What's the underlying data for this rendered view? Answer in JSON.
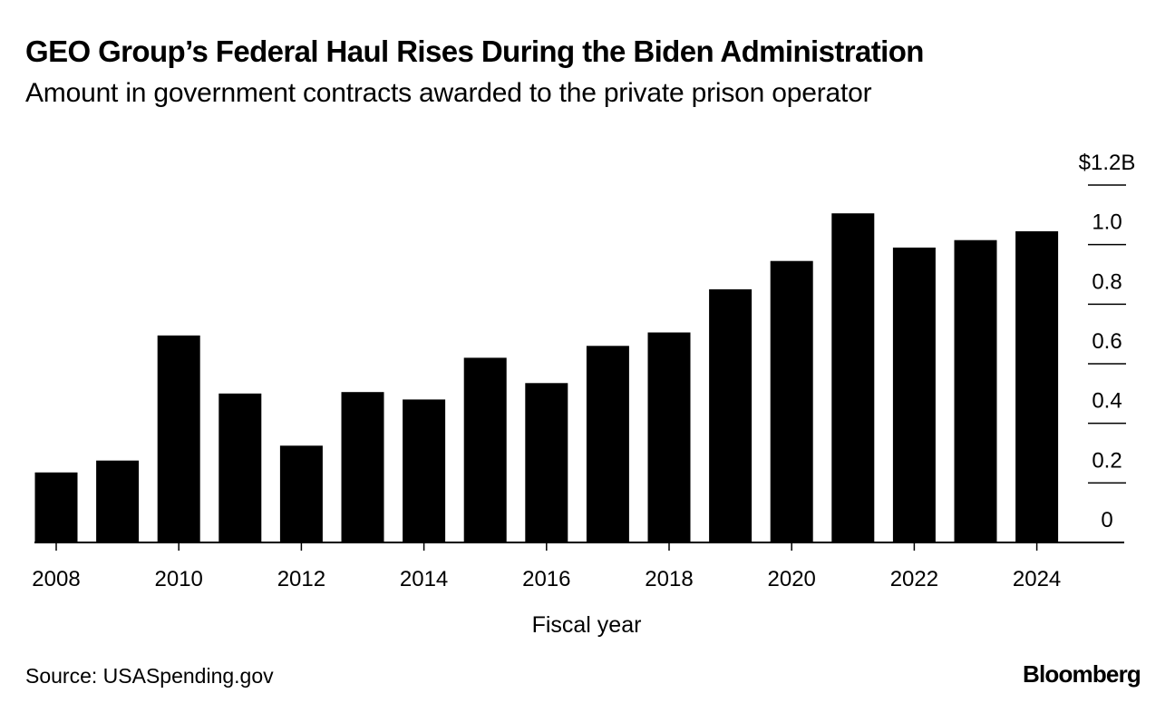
{
  "chart_data": {
    "type": "bar",
    "title": "GEO Group’s Federal Haul Rises During the Biden Administration",
    "subtitle": "Amount in government contracts awarded to the private prison operator",
    "categories": [
      "2008",
      "2009",
      "2010",
      "2011",
      "2012",
      "2013",
      "2014",
      "2015",
      "2016",
      "2017",
      "2018",
      "2019",
      "2020",
      "2021",
      "2022",
      "2023",
      "2024"
    ],
    "values": [
      0.235,
      0.275,
      0.695,
      0.5,
      0.325,
      0.505,
      0.48,
      0.62,
      0.535,
      0.66,
      0.705,
      0.85,
      0.945,
      1.105,
      0.99,
      1.015,
      1.045
    ],
    "x_tick_labels": [
      "2008",
      "2010",
      "2012",
      "2014",
      "2016",
      "2018",
      "2020",
      "2022",
      "2024"
    ],
    "y_ticks": [
      0,
      0.2,
      0.4,
      0.6,
      0.8,
      1.0,
      1.2
    ],
    "y_tick_labels": [
      "0",
      "0.2",
      "0.4",
      "0.6",
      "0.8",
      "1.0",
      "$1.2B"
    ],
    "ylim": [
      0,
      1.2
    ],
    "xlabel": "Fiscal year",
    "ylabel": "",
    "grid": false,
    "bar_color": "#000000",
    "axis_color": "#000000"
  },
  "footer": {
    "source": "Source: USASpending.gov",
    "logo": "Bloomberg"
  }
}
